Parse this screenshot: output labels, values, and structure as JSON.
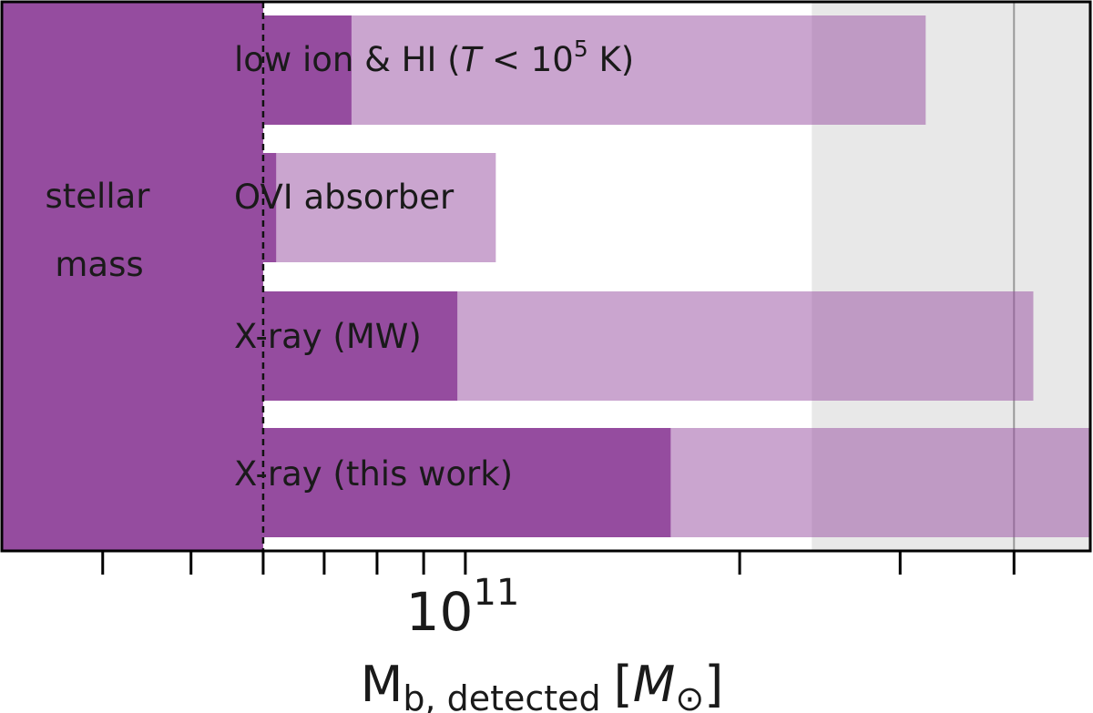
{
  "chart_data": {
    "type": "bar",
    "orientation": "horizontal",
    "x_scale": "log",
    "xlim": [
      31000000000.0,
      485000000000.0
    ],
    "xlabel_main": "M",
    "xlabel_sub": "b, detected",
    "xlabel_unit_open": "[",
    "xlabel_unit_symbol": "M",
    "xlabel_unit_sub": "⊙",
    "xlabel_unit_close": "]",
    "x_tick_label_mantissa": "10",
    "x_tick_label_exponent": "11",
    "x_tick_label_value": 100000000000.0,
    "x_major_ticks": [
      100000000000.0
    ],
    "x_minor_ticks": [
      40000000000.0,
      50000000000.0,
      60000000000.0,
      70000000000.0,
      80000000000.0,
      90000000000.0,
      200000000000.0,
      300000000000.0,
      400000000000.0
    ],
    "stellar_mass": {
      "label_line1": "stellar",
      "label_line2": "mass",
      "value": 60000000000.0,
      "color": "#954c9f"
    },
    "reference_band": {
      "low": 240000000000.0,
      "high": 550000000000.0,
      "color": "#e8e8e8"
    },
    "reference_line": {
      "value": 400000000000.0,
      "color": "#999999"
    },
    "series": [
      {
        "name": "low ion & HI",
        "name_suffix": " (",
        "name_var": "T",
        "name_rel": " < 10",
        "name_exp": "5",
        "name_unit": " K)",
        "detected": 75000000000.0,
        "upper": 320000000000.0
      },
      {
        "name": "OVI absorber",
        "detected": 62000000000.0,
        "upper": 108000000000.0
      },
      {
        "name": "X-ray (MW)",
        "detected": 98000000000.0,
        "upper": 420000000000.0
      },
      {
        "name": "X-ray (this work)",
        "detected": 168000000000.0,
        "upper": 990000000000.0
      }
    ],
    "colors": {
      "dark": "#954c9f",
      "light": "#caa2cf"
    }
  }
}
